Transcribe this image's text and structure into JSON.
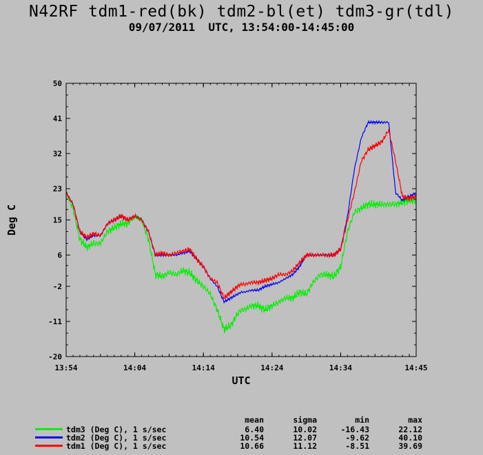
{
  "header": {
    "title": "N42RF tdm1-red(bk) tdm2-bl(et) tdm3-gr(tdl)",
    "subtitle": "09/07/2011  UTC, 13:54:00-14:45:00"
  },
  "chart_data": {
    "type": "line",
    "title": "N42RF tdm1-red(bk) tdm2-bl(et) tdm3-gr(tdl)",
    "subtitle": "09/07/2011  UTC, 13:54:00-14:45:00",
    "xlabel": "UTC",
    "ylabel": "Deg C",
    "x_unit": "minutes",
    "xlim": [
      834,
      885
    ],
    "ylim": [
      -20,
      50
    ],
    "x_ticks": [
      {
        "v": 834,
        "label": "13:54"
      },
      {
        "v": 844,
        "label": "14:04"
      },
      {
        "v": 854,
        "label": "14:14"
      },
      {
        "v": 864,
        "label": "14:24"
      },
      {
        "v": 874,
        "label": "14:34"
      },
      {
        "v": 885,
        "label": "14:45"
      }
    ],
    "y_ticks": [
      {
        "v": 50,
        "label": "50"
      },
      {
        "v": 41,
        "label": "41"
      },
      {
        "v": 32,
        "label": "32"
      },
      {
        "v": 23,
        "label": "23"
      },
      {
        "v": 15,
        "label": "15"
      },
      {
        "v": 6,
        "label": "6"
      },
      {
        "v": -2,
        "label": "-2"
      },
      {
        "v": -11,
        "label": "-11"
      },
      {
        "v": -20,
        "label": "-20"
      }
    ],
    "grid": false,
    "legend_position": "bottom-left",
    "series": [
      {
        "name": "tdm3 (Deg C), 1 s/sec",
        "color": "#00ee00",
        "mean": "6.40",
        "sigma": "10.02",
        "min": "-16.43",
        "max": "22.12",
        "x": [
          834,
          835,
          836,
          837,
          838,
          839,
          840,
          841,
          842,
          843,
          844,
          845,
          846,
          847,
          848,
          849,
          850,
          851,
          852,
          853,
          854,
          855,
          856,
          857,
          858,
          859,
          859.5,
          860,
          861,
          862,
          863,
          864,
          865,
          866,
          867,
          868,
          869,
          870,
          871,
          872,
          873,
          874,
          875,
          876,
          877,
          878,
          879,
          880,
          881,
          882,
          883,
          884,
          885
        ],
        "y": [
          22,
          18,
          10,
          8,
          9,
          9,
          12,
          13,
          14,
          14,
          16,
          15,
          10,
          1,
          0.5,
          1.5,
          1,
          2,
          1.5,
          -0.5,
          -2,
          -4,
          -8,
          -13,
          -12,
          -9,
          -8,
          -8,
          -7,
          -7,
          -8,
          -7,
          -6,
          -5,
          -5,
          -3.5,
          -4,
          -1,
          1,
          1,
          0.5,
          3,
          12,
          17,
          18,
          19,
          19,
          19,
          19,
          19,
          19.5,
          20,
          20
        ]
      },
      {
        "name": "tdm2 (Deg C), 1 s/sec",
        "color": "#0000ff",
        "mean": "10.54",
        "sigma": "12.07",
        "min": "-9.62",
        "max": "40.10",
        "x": [
          834,
          835,
          836,
          837,
          838,
          839,
          840,
          841,
          842,
          843,
          844,
          845,
          846,
          847,
          848,
          849,
          850,
          851,
          852,
          853,
          854,
          855,
          856,
          857,
          858,
          859,
          859.5,
          860,
          861,
          862,
          863,
          864,
          865,
          866,
          867,
          868,
          869,
          870,
          871,
          872,
          873,
          874,
          875,
          876,
          877,
          878,
          879,
          880,
          881,
          882,
          883,
          884,
          885
        ],
        "y": [
          22,
          19,
          12,
          10,
          11,
          11,
          14,
          15,
          16,
          15,
          16,
          15,
          12,
          6,
          6,
          6,
          6,
          6.5,
          7,
          5,
          3,
          0,
          -2,
          -6,
          -5,
          -4,
          -3.5,
          -3.5,
          -3,
          -3,
          -2,
          -1.5,
          -1,
          0,
          1,
          3,
          6,
          6,
          6,
          6,
          6,
          7.5,
          16,
          28,
          36,
          40,
          40,
          40,
          40,
          22,
          20,
          21,
          22
        ]
      },
      {
        "name": "tdm1 (Deg C), 1 s/sec",
        "color": "#ff0000",
        "mean": "10.66",
        "sigma": "11.12",
        "min": "-8.51",
        "max": "39.69",
        "x": [
          834,
          835,
          836,
          837,
          838,
          839,
          840,
          841,
          842,
          843,
          844,
          845,
          846,
          847,
          848,
          849,
          850,
          851,
          852,
          853,
          854,
          855,
          856,
          857,
          858,
          859,
          859.5,
          860,
          861,
          862,
          863,
          864,
          865,
          866,
          867,
          868,
          869,
          870,
          871,
          872,
          873,
          874,
          875,
          876,
          877,
          878,
          879,
          880,
          881,
          882,
          883,
          884,
          885
        ],
        "y": [
          22,
          19,
          12,
          10.5,
          11.5,
          11,
          14,
          15,
          16,
          15,
          16,
          15,
          12,
          6,
          6.5,
          6,
          6.5,
          7,
          7.5,
          5,
          3,
          0,
          -1,
          -5,
          -3.5,
          -2,
          -1.5,
          -1.5,
          -1,
          -1,
          -0.5,
          0,
          1,
          1,
          2,
          4,
          6,
          6,
          6,
          6,
          6,
          7.5,
          15,
          22,
          30,
          33,
          34,
          35,
          38,
          30,
          21,
          20.5,
          21
        ]
      }
    ]
  },
  "legend": {
    "headers": {
      "mean": "mean",
      "sigma": "sigma",
      "min": "min",
      "max": "max"
    }
  }
}
